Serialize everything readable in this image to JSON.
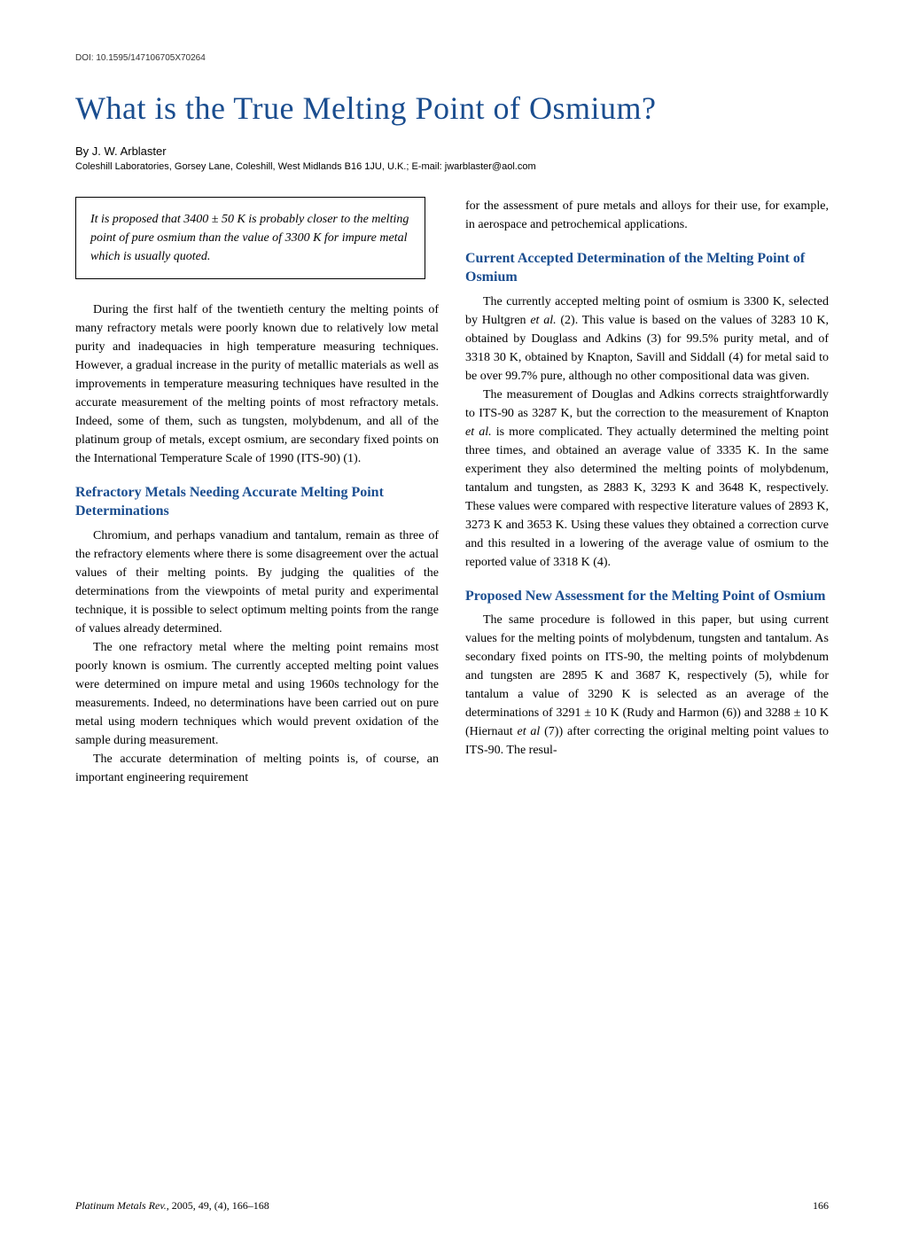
{
  "doi": "DOI: 10.1595/147106705X70264",
  "title": "What is the True Melting Point of Osmium?",
  "author": "By J. W. Arblaster",
  "affiliation": "Coleshill Laboratories, Gorsey Lane, Coleshill, West Midlands B16 1JU, U.K.; E-mail: jwarblaster@aol.com",
  "abstract": "It is proposed that 3400 ± 50 K is probably closer to the melting point of pure osmium than the value of 3300 K for impure metal which is usually quoted.",
  "col1": {
    "p1": "During the first half of the twentieth century the melting points of many refractory metals were poorly known due to relatively low metal purity and inadequacies in high temperature measuring techniques. However, a gradual increase in the purity of metallic materials as well as improvements in temperature measuring techniques have resulted in the accurate measurement of the melting points of most refractory metals. Indeed, some of them, such as tungsten, molybdenum, and all of the platinum group of metals, except osmium, are secondary fixed points on the International Temperature Scale of 1990 (ITS-90) (1).",
    "h1": "Refractory Metals Needing Accurate Melting Point Determinations",
    "p2": "Chromium, and perhaps vanadium and tantalum, remain as three of the refractory elements where there is some disagreement over the actual values of their melting points. By judging the qualities of the determinations from the viewpoints of metal purity and experimental technique, it is possible to select optimum melting points from the range of values already determined.",
    "p3": "The one refractory metal where the melting point remains most poorly known is osmium. The currently accepted melting point values were determined on impure metal and using 1960s technology for the measurements. Indeed, no determinations have been carried out on pure metal using modern techniques which would prevent oxidation of the sample during measurement.",
    "p4": "The accurate determination of melting points is, of course, an important engineering requirement"
  },
  "col2": {
    "p1": "for the assessment of pure metals and alloys for their use, for example, in aerospace and petrochemical applications.",
    "h1": "Current Accepted Determination of the Melting Point of Osmium",
    "p2_a": "The currently accepted melting point of osmium is 3300 K, selected by Hultgren ",
    "p2_b": "et al.",
    "p2_c": " (2). This value is based on the values of 3283    10 K, obtained by Douglass and Adkins (3) for 99.5% purity metal, and of 3318    30 K, obtained by Knapton, Savill and Siddall (4) for metal said to be over 99.7% pure, although no other compositional data was given.",
    "p3_a": "The measurement of Douglas and Adkins corrects straightforwardly to ITS-90 as 3287 K, but the correction to the measurement of Knapton ",
    "p3_b": "et al.",
    "p3_c": " is more complicated. They actually determined the melting point three times, and obtained an average value of 3335 K. In the same experiment they also determined the melting points of molybdenum, tantalum and tungsten, as 2883 K, 3293 K and 3648 K, respectively. These values were compared with respective literature values of 2893 K, 3273 K and 3653 K. Using these values they obtained a correction curve and this resulted in a lowering of the average value of osmium to the reported value of 3318 K (4).",
    "h2": "Proposed New Assessment for the Melting Point of Osmium",
    "p4_a": "The same procedure is followed in this paper, but using current values for the melting points of molybdenum, tungsten and tantalum. As secondary fixed points on ITS-90, the melting points of molybdenum and tungsten are 2895 K and 3687 K, respectively (5), while for tantalum a value of 3290 K is selected as an average of the determinations of 3291 ± 10 K (Rudy and Harmon (6)) and 3288 ± 10 K (Hiernaut ",
    "p4_b": "et al ",
    "p4_c": "(7)) after correcting the original melting point values to ITS-90. The resul-"
  },
  "footer": {
    "journal": "Platinum Metals Rev.",
    "citation": ", 2005, 49, (4), 166–168",
    "page": "166"
  },
  "colors": {
    "title_blue": "#1a4d8f",
    "text_black": "#000000",
    "background": "#ffffff"
  },
  "typography": {
    "title_fontsize": 36,
    "heading_fontsize": 16,
    "body_fontsize": 14,
    "doi_fontsize": 10,
    "author_fontsize": 13,
    "affiliation_fontsize": 11,
    "footer_fontsize": 12
  }
}
